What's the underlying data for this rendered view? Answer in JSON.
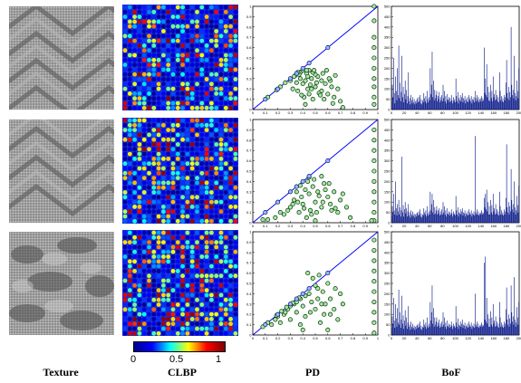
{
  "columns": {
    "texture_label": "Texture",
    "clbp_label": "CLBP",
    "pd_label": "PD",
    "bof_label": "BoF"
  },
  "colorbar": {
    "ticks": [
      "0",
      "0.5",
      "1"
    ],
    "colormap": [
      "#00008f",
      "#0000ff",
      "#00ffff",
      "#ffff00",
      "#ff0000",
      "#800000"
    ]
  },
  "colors": {
    "diagonal_line": "#0000ff",
    "point_fill": "#a8e6a8",
    "point_edge": "#003300",
    "bar_fill": "#0b1a8a"
  },
  "chart_data": [
    {
      "type": "scatter",
      "title": "",
      "xlim": [
        0,
        1
      ],
      "ylim": [
        0,
        1
      ],
      "xticks": [
        "0",
        "0.1",
        "0.2",
        "0.3",
        "0.4",
        "0.5",
        "0.6",
        "0.7",
        "0.8",
        "0.9",
        "1"
      ],
      "yticks": [
        "0",
        "0.1",
        "0.2",
        "0.3",
        "0.4",
        "0.5",
        "0.6",
        "0.7",
        "0.8",
        "0.9",
        "1"
      ],
      "series": [
        {
          "x": [
            0.32,
            0.35,
            0.36,
            0.38,
            0.4,
            0.41,
            0.42,
            0.43,
            0.44,
            0.45,
            0.47,
            0.48,
            0.5,
            0.52,
            0.55,
            0.56,
            0.58,
            0.6,
            0.62,
            0.65,
            0.68,
            0.7,
            0.38,
            0.39,
            0.44,
            0.46,
            0.5,
            0.53,
            0.57,
            0.61,
            0.63,
            0.34,
            0.37,
            0.42,
            0.48,
            0.55,
            0.59,
            0.66,
            0.72,
            0.45,
            0.49,
            0.51,
            0.54,
            0.64,
            0.97,
            0.97,
            0.97,
            0.97,
            0.97,
            0.97,
            0.97,
            0.97,
            0.97,
            0.97,
            0.3,
            0.33,
            0.26,
            0.22,
            0.36,
            0.4,
            0.12,
            0.19,
            0.43,
            0.47
          ],
          "y": [
            0.2,
            0.26,
            0.18,
            0.3,
            0.25,
            0.12,
            0.28,
            0.35,
            0.2,
            0.15,
            0.3,
            0.1,
            0.22,
            0.32,
            0.18,
            0.35,
            0.25,
            0.15,
            0.28,
            0.12,
            0.2,
            0.08,
            0.36,
            0.14,
            0.32,
            0.24,
            0.34,
            0.16,
            0.1,
            0.3,
            0.22,
            0.33,
            0.34,
            0.05,
            0.36,
            0.28,
            0.38,
            0.33,
            0.02,
            0.38,
            0.38,
            0.26,
            0.14,
            0.06,
            0.05,
            0.12,
            0.22,
            0.3,
            0.4,
            0.5,
            0.6,
            0.7,
            0.86,
            1.0,
            0.28,
            0.32,
            0.26,
            0.22,
            0.36,
            0.38,
            0.12,
            0.19,
            0.38,
            0.2
          ]
        }
      ]
    },
    {
      "type": "scatter",
      "title": "",
      "xlim": [
        0,
        1
      ],
      "ylim": [
        0,
        1
      ],
      "xticks": [
        "0",
        "0.1",
        "0.2",
        "0.3",
        "0.4",
        "0.5",
        "0.6",
        "0.7",
        "0.8",
        "0.9",
        "1"
      ],
      "yticks": [
        "0",
        "0.1",
        "0.2",
        "0.3",
        "0.4",
        "0.5",
        "0.6",
        "0.7",
        "0.8",
        "0.9",
        "1"
      ],
      "series": [
        {
          "x": [
            0.3,
            0.33,
            0.35,
            0.37,
            0.39,
            0.4,
            0.42,
            0.43,
            0.45,
            0.46,
            0.48,
            0.5,
            0.52,
            0.55,
            0.57,
            0.6,
            0.62,
            0.65,
            0.68,
            0.7,
            0.75,
            0.78,
            0.38,
            0.41,
            0.44,
            0.47,
            0.53,
            0.58,
            0.63,
            0.72,
            0.36,
            0.49,
            0.51,
            0.56,
            0.61,
            0.66,
            0.28,
            0.32,
            0.25,
            0.45,
            0.5,
            0.55,
            0.97,
            0.97,
            0.97,
            0.97,
            0.97,
            0.97,
            0.97,
            0.97,
            0.97,
            0.97,
            0.08,
            0.12,
            0.22,
            0.18,
            0.95
          ],
          "y": [
            0.15,
            0.22,
            0.3,
            0.1,
            0.25,
            0.18,
            0.32,
            0.05,
            0.28,
            0.12,
            0.35,
            0.2,
            0.3,
            0.15,
            0.38,
            0.25,
            0.18,
            0.3,
            0.1,
            0.22,
            0.15,
            0.05,
            0.36,
            0.14,
            0.4,
            0.08,
            0.26,
            0.32,
            0.12,
            0.28,
            0.2,
            0.42,
            0.1,
            0.2,
            0.38,
            0.14,
            0.12,
            0.18,
            0.08,
            0.44,
            0.02,
            0.45,
            0.02,
            0.1,
            0.2,
            0.3,
            0.4,
            0.5,
            0.6,
            0.7,
            0.8,
            0.9,
            0.03,
            0.03,
            0.1,
            0.05,
            0.02
          ]
        }
      ]
    },
    {
      "type": "scatter",
      "title": "",
      "xlim": [
        0,
        1
      ],
      "ylim": [
        0,
        1
      ],
      "xticks": [
        "0",
        "0.1",
        "0.2",
        "0.3",
        "0.4",
        "0.5",
        "0.6",
        "0.7",
        "0.8",
        "0.9",
        "1"
      ],
      "yticks": [
        "0",
        "0.1",
        "0.2",
        "0.3",
        "0.4",
        "0.5",
        "0.6",
        "0.7",
        "0.8",
        "0.9",
        "1"
      ],
      "series": [
        {
          "x": [
            0.15,
            0.18,
            0.2,
            0.22,
            0.25,
            0.28,
            0.3,
            0.33,
            0.35,
            0.38,
            0.4,
            0.42,
            0.45,
            0.47,
            0.5,
            0.52,
            0.55,
            0.57,
            0.6,
            0.62,
            0.65,
            0.68,
            0.7,
            0.35,
            0.38,
            0.42,
            0.46,
            0.5,
            0.54,
            0.58,
            0.62,
            0.48,
            0.52,
            0.56,
            0.6,
            0.44,
            0.4,
            0.3,
            0.26,
            0.97,
            0.97,
            0.97,
            0.97,
            0.97,
            0.97,
            0.97,
            0.97,
            0.97,
            0.97,
            0.72,
            0.66,
            0.53,
            0.37,
            0.32,
            0.27,
            0.23,
            0.19,
            0.12,
            0.08
          ],
          "y": [
            0.1,
            0.15,
            0.18,
            0.12,
            0.2,
            0.25,
            0.15,
            0.3,
            0.22,
            0.35,
            0.28,
            0.18,
            0.4,
            0.32,
            0.25,
            0.45,
            0.3,
            0.2,
            0.5,
            0.35,
            0.25,
            0.15,
            0.4,
            0.32,
            0.1,
            0.38,
            0.22,
            0.48,
            0.12,
            0.3,
            0.2,
            0.55,
            0.35,
            0.42,
            0.05,
            0.6,
            0.05,
            0.28,
            0.22,
            0.02,
            0.12,
            0.22,
            0.32,
            0.42,
            0.52,
            0.62,
            0.72,
            0.82,
            0.92,
            0.3,
            0.45,
            0.58,
            0.36,
            0.31,
            0.27,
            0.23,
            0.19,
            0.12,
            0.08
          ]
        }
      ]
    },
    {
      "type": "bar",
      "title": "",
      "xlim": [
        0,
        200
      ],
      "ylim": [
        0,
        500
      ],
      "xticks": [
        "0",
        "20",
        "40",
        "60",
        "80",
        "100",
        "120",
        "140",
        "160",
        "180",
        "200"
      ],
      "yticks": [
        "0",
        "50",
        "100",
        "150",
        "200",
        "250",
        "300",
        "350",
        "400",
        "450",
        "500"
      ],
      "values": [
        40,
        120,
        60,
        250,
        80,
        30,
        160,
        90,
        45,
        200,
        70,
        310,
        55,
        130,
        40,
        85,
        260,
        60,
        110,
        35,
        75,
        140,
        50,
        95,
        30,
        65,
        180,
        40,
        55,
        25,
        70,
        45,
        30,
        60,
        35,
        50,
        25,
        40,
        30,
        45,
        55,
        35,
        60,
        40,
        70,
        30,
        50,
        25,
        45,
        35,
        80,
        55,
        40,
        65,
        30,
        90,
        50,
        35,
        60,
        45,
        200,
        75,
        120,
        280,
        60,
        140,
        45,
        95,
        55,
        70,
        90,
        40,
        65,
        50,
        85,
        35,
        60,
        45,
        70,
        40,
        120,
        55,
        90,
        40,
        65,
        30,
        75,
        50,
        45,
        60,
        35,
        55,
        40,
        70,
        45,
        30,
        60,
        40,
        50,
        35,
        150,
        65,
        40,
        85,
        30,
        55,
        45,
        70,
        40,
        60,
        80,
        35,
        55,
        45,
        65,
        30,
        50,
        40,
        60,
        35,
        70,
        45,
        55,
        40,
        65,
        30,
        50,
        45,
        60,
        35,
        90,
        55,
        40,
        70,
        45,
        60,
        35,
        50,
        40,
        55,
        65,
        40,
        55,
        45,
        300,
        80,
        150,
        70,
        220,
        60,
        110,
        45,
        85,
        40,
        120,
        55,
        90,
        40,
        160,
        60,
        75,
        45,
        95,
        50,
        70,
        40,
        60,
        35,
        180,
        90,
        45,
        65,
        40,
        55,
        35,
        70,
        45,
        60,
        130,
        240,
        80,
        55,
        110,
        45,
        85,
        60,
        400,
        120,
        70,
        95,
        55,
        260,
        80,
        45,
        65,
        140,
        90,
        55,
        200
      ]
    },
    {
      "type": "bar",
      "title": "",
      "xlim": [
        0,
        200
      ],
      "ylim": [
        0,
        500
      ],
      "xticks": [
        "0",
        "20",
        "40",
        "60",
        "80",
        "100",
        "120",
        "140",
        "160",
        "180",
        "200"
      ],
      "yticks": [
        "0",
        "50",
        "100",
        "150",
        "200",
        "250",
        "300",
        "350",
        "400",
        "450",
        "500"
      ],
      "values": [
        30,
        80,
        50,
        140,
        60,
        40,
        200,
        70,
        35,
        90,
        55,
        110,
        40,
        75,
        30,
        60,
        320,
        50,
        85,
        30,
        65,
        100,
        45,
        70,
        30,
        55,
        90,
        35,
        50,
        25,
        60,
        40,
        30,
        55,
        35,
        45,
        25,
        40,
        30,
        45,
        50,
        35,
        55,
        40,
        65,
        30,
        45,
        25,
        40,
        35,
        70,
        50,
        40,
        60,
        30,
        80,
        45,
        35,
        55,
        40,
        150,
        60,
        90,
        140,
        50,
        110,
        40,
        75,
        45,
        60,
        80,
        40,
        60,
        45,
        70,
        35,
        55,
        40,
        65,
        40,
        100,
        50,
        80,
        40,
        60,
        30,
        70,
        45,
        40,
        55,
        35,
        50,
        40,
        65,
        45,
        30,
        55,
        40,
        45,
        35,
        130,
        60,
        40,
        75,
        30,
        50,
        45,
        65,
        40,
        55,
        70,
        35,
        50,
        45,
        60,
        30,
        45,
        40,
        55,
        35,
        65,
        40,
        50,
        40,
        60,
        30,
        45,
        40,
        55,
        35,
        420,
        50,
        40,
        65,
        40,
        55,
        35,
        45,
        40,
        50,
        60,
        40,
        50,
        45,
        120,
        75,
        140,
        65,
        160,
        55,
        100,
        40,
        80,
        40,
        110,
        50,
        85,
        40,
        140,
        55,
        70,
        40,
        90,
        45,
        65,
        40,
        55,
        35,
        150,
        80,
        40,
        60,
        40,
        50,
        35,
        65,
        40,
        55,
        120,
        380,
        75,
        50,
        100,
        40,
        80,
        55,
        260,
        110,
        65,
        90,
        50,
        200,
        75,
        40,
        60,
        130,
        85,
        50,
        180
      ]
    },
    {
      "type": "bar",
      "title": "",
      "xlim": [
        0,
        200
      ],
      "ylim": [
        0,
        500
      ],
      "xticks": [
        "0",
        "20",
        "40",
        "60",
        "80",
        "100",
        "120",
        "140",
        "160",
        "180",
        "200"
      ],
      "yticks": [
        "0",
        "50",
        "100",
        "150",
        "200",
        "250",
        "300",
        "350",
        "400",
        "450",
        "500"
      ],
      "values": [
        35,
        90,
        55,
        180,
        70,
        35,
        150,
        80,
        40,
        130,
        60,
        220,
        50,
        110,
        35,
        75,
        190,
        55,
        95,
        30,
        70,
        120,
        45,
        85,
        30,
        60,
        140,
        40,
        50,
        25,
        65,
        40,
        30,
        55,
        35,
        45,
        25,
        40,
        30,
        45,
        50,
        35,
        55,
        40,
        65,
        30,
        45,
        25,
        40,
        35,
        75,
        50,
        40,
        60,
        30,
        85,
        45,
        35,
        55,
        40,
        160,
        70,
        110,
        240,
        55,
        130,
        40,
        85,
        50,
        65,
        85,
        40,
        60,
        45,
        75,
        35,
        55,
        40,
        65,
        40,
        110,
        50,
        85,
        40,
        60,
        30,
        70,
        45,
        40,
        55,
        35,
        50,
        40,
        65,
        45,
        30,
        55,
        40,
        45,
        35,
        140,
        60,
        40,
        80,
        30,
        50,
        45,
        65,
        40,
        55,
        75,
        35,
        50,
        45,
        60,
        30,
        45,
        40,
        55,
        35,
        65,
        40,
        50,
        40,
        60,
        30,
        45,
        40,
        55,
        35,
        200,
        50,
        40,
        65,
        40,
        55,
        35,
        45,
        40,
        50,
        60,
        40,
        50,
        45,
        350,
        75,
        380,
        65,
        180,
        55,
        100,
        40,
        80,
        40,
        115,
        50,
        85,
        40,
        150,
        55,
        70,
        40,
        90,
        45,
        65,
        40,
        55,
        35,
        160,
        85,
        40,
        60,
        40,
        50,
        35,
        65,
        40,
        55,
        125,
        230,
        75,
        50,
        100,
        40,
        80,
        55,
        240,
        110,
        65,
        90,
        50,
        280,
        75,
        40,
        60,
        135,
        85,
        50,
        160
      ]
    }
  ]
}
